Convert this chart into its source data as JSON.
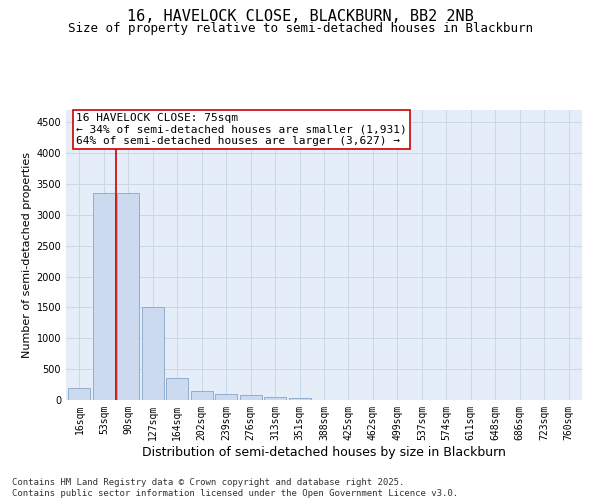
{
  "title1": "16, HAVELOCK CLOSE, BLACKBURN, BB2 2NB",
  "title2": "Size of property relative to semi-detached houses in Blackburn",
  "xlabel": "Distribution of semi-detached houses by size in Blackburn",
  "ylabel": "Number of semi-detached properties",
  "categories": [
    "16sqm",
    "53sqm",
    "90sqm",
    "127sqm",
    "164sqm",
    "202sqm",
    "239sqm",
    "276sqm",
    "313sqm",
    "351sqm",
    "388sqm",
    "425sqm",
    "462sqm",
    "499sqm",
    "537sqm",
    "574sqm",
    "611sqm",
    "648sqm",
    "686sqm",
    "723sqm",
    "760sqm"
  ],
  "values": [
    200,
    3350,
    3350,
    1500,
    350,
    150,
    100,
    75,
    50,
    25,
    5,
    2,
    0,
    0,
    0,
    0,
    0,
    0,
    0,
    0,
    0
  ],
  "bar_color": "#ccdaf0",
  "bar_edge_color": "#90aed0",
  "vline_bar_index": 2,
  "vline_color": "#cc0000",
  "annotation_text": "16 HAVELOCK CLOSE: 75sqm\n← 34% of semi-detached houses are smaller (1,931)\n64% of semi-detached houses are larger (3,627) →",
  "annotation_box_color": "#ffffff",
  "annotation_box_edge": "#cc0000",
  "ylim": [
    0,
    4700
  ],
  "yticks": [
    0,
    500,
    1000,
    1500,
    2000,
    2500,
    3000,
    3500,
    4000,
    4500
  ],
  "grid_color": "#c8d8e8",
  "bg_color": "#e4edf8",
  "footer": "Contains HM Land Registry data © Crown copyright and database right 2025.\nContains public sector information licensed under the Open Government Licence v3.0.",
  "title1_fontsize": 11,
  "title2_fontsize": 9,
  "xlabel_fontsize": 9,
  "ylabel_fontsize": 8,
  "tick_fontsize": 7,
  "annotation_fontsize": 8,
  "footer_fontsize": 6.5
}
